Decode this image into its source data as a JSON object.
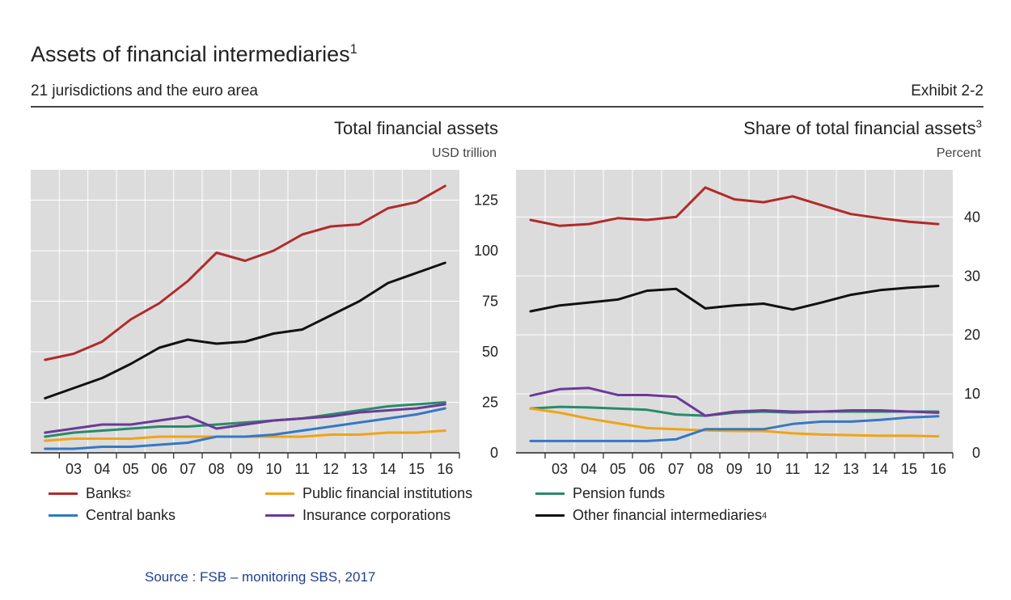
{
  "header": {
    "title": "Assets of financial intermediaries",
    "title_sup": "1",
    "subtitle": "21 jurisdictions and the euro area",
    "exhibit": "Exhibit 2-2"
  },
  "legend": [
    {
      "label": "Banks",
      "sup": "2",
      "color": "#b22a2a"
    },
    {
      "label": "Public financial institutions",
      "sup": "",
      "color": "#f0a318"
    },
    {
      "label": "Pension funds",
      "sup": "",
      "color": "#2a8a6a"
    },
    {
      "label": "Central banks",
      "sup": "",
      "color": "#3478c4"
    },
    {
      "label": "Insurance corporations",
      "sup": "",
      "color": "#6a3a9a"
    },
    {
      "label": "Other financial intermediaries",
      "sup": "4",
      "color": "#111111"
    }
  ],
  "source": "Source : FSB – monitoring SBS, 2017",
  "chart_data": [
    {
      "type": "line",
      "title": "Total financial assets",
      "title_sup": "",
      "unit": "USD trillion",
      "categories": [
        "03",
        "04",
        "05",
        "06",
        "07",
        "08",
        "09",
        "10",
        "11",
        "12",
        "13",
        "14",
        "15",
        "16"
      ],
      "x": [
        2002.5,
        2003.5,
        2004.5,
        2005.5,
        2006.5,
        2007.5,
        2008.5,
        2009.5,
        2010.5,
        2011.5,
        2012.5,
        2013.5,
        2014.5,
        2015.5,
        2016.5
      ],
      "ylim": [
        0,
        140
      ],
      "yticks": [
        0,
        25,
        50,
        75,
        100,
        125
      ],
      "grid": true,
      "series": [
        {
          "name": "Banks",
          "color": "#b22a2a",
          "values": [
            46,
            49,
            55,
            66,
            74,
            85,
            99,
            95,
            100,
            108,
            112,
            113,
            121,
            124,
            132
          ]
        },
        {
          "name": "Other financial intermediaries",
          "color": "#111111",
          "values": [
            27,
            32,
            37,
            44,
            52,
            56,
            54,
            55,
            59,
            61,
            68,
            75,
            84,
            89,
            94
          ]
        },
        {
          "name": "Pension funds",
          "color": "#2a8a6a",
          "values": [
            8,
            10,
            11,
            12,
            13,
            13,
            14,
            15,
            16,
            17,
            19,
            21,
            23,
            24,
            25
          ]
        },
        {
          "name": "Insurance corporations",
          "color": "#6a3a9a",
          "values": [
            10,
            12,
            14,
            14,
            16,
            18,
            12,
            14,
            16,
            17,
            18,
            20,
            21,
            22,
            24
          ]
        },
        {
          "name": "Public financial institutions",
          "color": "#f0a318",
          "values": [
            6,
            7,
            7,
            7,
            8,
            8,
            8,
            8,
            8,
            8,
            9,
            9,
            10,
            10,
            11
          ]
        },
        {
          "name": "Central banks",
          "color": "#3478c4",
          "values": [
            2,
            2,
            3,
            3,
            4,
            5,
            8,
            8,
            9,
            11,
            13,
            15,
            17,
            19,
            22
          ]
        }
      ]
    },
    {
      "type": "line",
      "title": "Share of total financial assets",
      "title_sup": "3",
      "unit": "Percent",
      "categories": [
        "03",
        "04",
        "05",
        "06",
        "07",
        "08",
        "09",
        "10",
        "11",
        "12",
        "13",
        "14",
        "15",
        "16"
      ],
      "x": [
        2002.5,
        2003.5,
        2004.5,
        2005.5,
        2006.5,
        2007.5,
        2008.5,
        2009.5,
        2010.5,
        2011.5,
        2012.5,
        2013.5,
        2014.5,
        2015.5,
        2016.5
      ],
      "ylim": [
        0,
        48
      ],
      "yticks": [
        0,
        10,
        20,
        30,
        40
      ],
      "grid": true,
      "series": [
        {
          "name": "Banks",
          "color": "#b22a2a",
          "values": [
            39.5,
            38.5,
            38.8,
            39.8,
            39.5,
            40,
            45,
            43,
            42.5,
            43.5,
            42,
            40.5,
            39.8,
            39.2,
            38.8
          ]
        },
        {
          "name": "Other financial intermediaries",
          "color": "#111111",
          "values": [
            24,
            25,
            25.5,
            26,
            27.5,
            27.8,
            24.5,
            25,
            25.3,
            24.3,
            25.5,
            26.8,
            27.6,
            28,
            28.3
          ]
        },
        {
          "name": "Pension funds",
          "color": "#2a8a6a",
          "values": [
            7.5,
            7.8,
            7.7,
            7.5,
            7.3,
            6.5,
            6.3,
            6.8,
            7,
            6.8,
            7,
            7,
            7,
            7,
            7
          ]
        },
        {
          "name": "Insurance corporations",
          "color": "#6a3a9a",
          "values": [
            9.7,
            10.8,
            11,
            9.8,
            9.8,
            9.5,
            6.3,
            7,
            7.2,
            7,
            7,
            7.2,
            7.2,
            7,
            6.8
          ]
        },
        {
          "name": "Public financial institutions",
          "color": "#f0a318",
          "values": [
            7.5,
            6.8,
            5.8,
            5,
            4.2,
            4,
            3.8,
            3.7,
            3.7,
            3.3,
            3.1,
            3,
            2.9,
            2.9,
            2.8
          ]
        },
        {
          "name": "Central banks",
          "color": "#3478c4",
          "values": [
            2,
            2,
            2,
            2,
            2,
            2.3,
            4,
            4,
            4,
            4.9,
            5.3,
            5.3,
            5.6,
            6,
            6.2
          ]
        }
      ]
    }
  ]
}
